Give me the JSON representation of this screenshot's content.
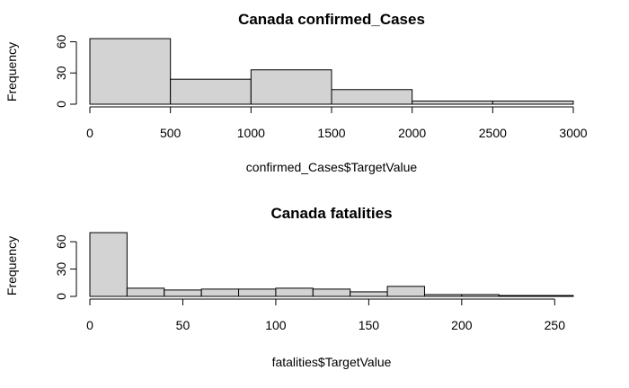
{
  "chart_data": [
    {
      "type": "bar",
      "title": "Canada confirmed_Cases",
      "xlabel": "confirmed_Cases$TargetValue",
      "ylabel": "Frequency",
      "bins": [
        {
          "start": 0,
          "end": 500,
          "count": 63
        },
        {
          "start": 500,
          "end": 1000,
          "count": 24
        },
        {
          "start": 1000,
          "end": 1500,
          "count": 33
        },
        {
          "start": 1500,
          "end": 2000,
          "count": 14
        },
        {
          "start": 2000,
          "end": 2500,
          "count": 3
        },
        {
          "start": 2500,
          "end": 3000,
          "count": 3
        }
      ],
      "xlim": [
        0,
        3000
      ],
      "ylim": [
        0,
        63
      ],
      "xticks": [
        0,
        500,
        1000,
        1500,
        2000,
        2500,
        3000
      ],
      "yticks": [
        0,
        30,
        60
      ],
      "grid": false
    },
    {
      "type": "bar",
      "title": "Canada fatalities",
      "xlabel": "fatalities$TargetValue",
      "ylabel": "Frequency",
      "bins": [
        {
          "start": 0,
          "end": 20,
          "count": 70
        },
        {
          "start": 20,
          "end": 40,
          "count": 9
        },
        {
          "start": 40,
          "end": 60,
          "count": 7
        },
        {
          "start": 60,
          "end": 80,
          "count": 8
        },
        {
          "start": 80,
          "end": 100,
          "count": 8
        },
        {
          "start": 100,
          "end": 120,
          "count": 9
        },
        {
          "start": 120,
          "end": 140,
          "count": 8
        },
        {
          "start": 140,
          "end": 160,
          "count": 5
        },
        {
          "start": 160,
          "end": 180,
          "count": 11
        },
        {
          "start": 180,
          "end": 200,
          "count": 2
        },
        {
          "start": 200,
          "end": 220,
          "count": 2
        },
        {
          "start": 220,
          "end": 240,
          "count": 1
        },
        {
          "start": 240,
          "end": 260,
          "count": 1
        }
      ],
      "xlim": [
        0,
        260
      ],
      "ylim": [
        0,
        70
      ],
      "xticks": [
        0,
        50,
        100,
        150,
        200,
        250
      ],
      "yticks": [
        0,
        30,
        60
      ],
      "grid": false
    }
  ],
  "colors": {
    "bar_fill": "#d3d3d3",
    "bar_stroke": "#000000"
  }
}
